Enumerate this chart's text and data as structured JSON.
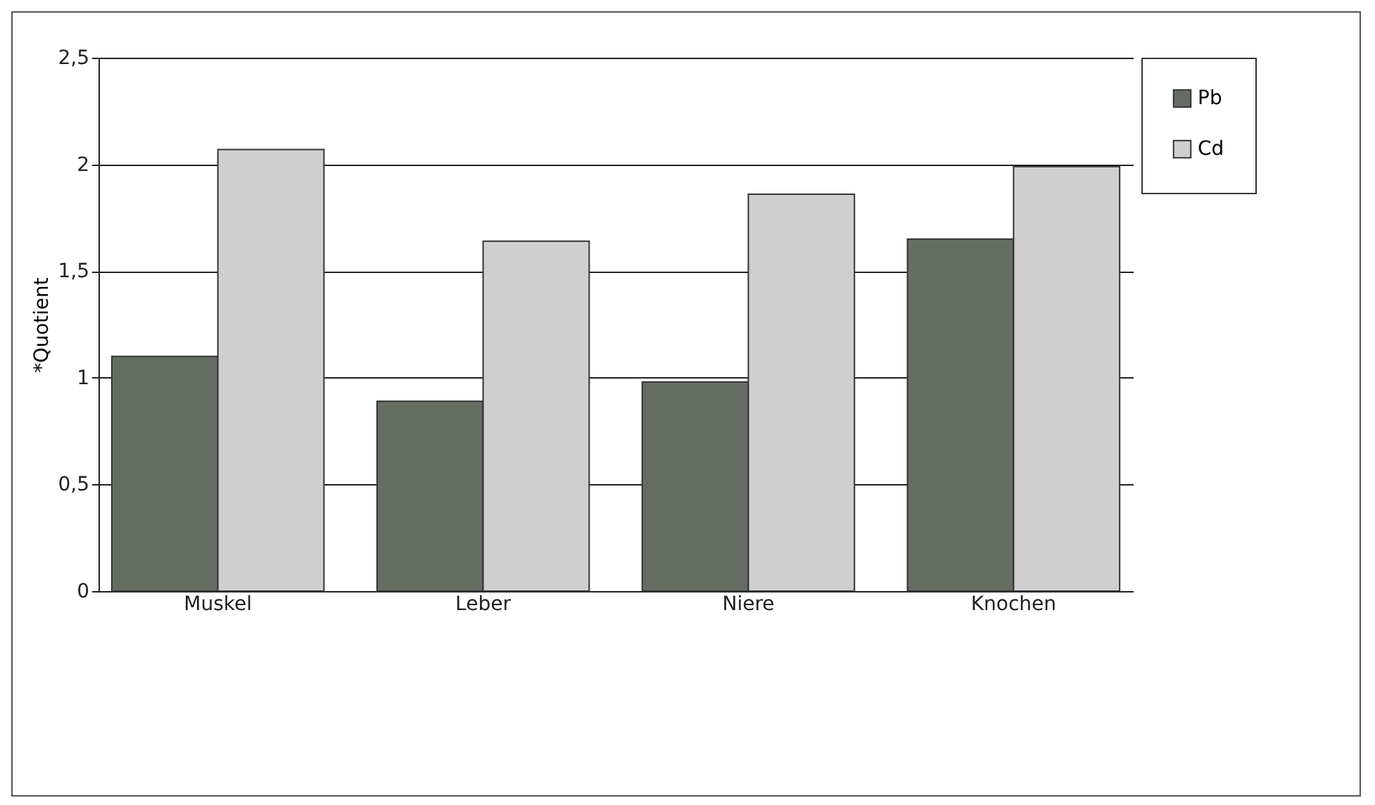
{
  "chart_data": {
    "type": "bar",
    "ylabel": "*Quotient",
    "categories": [
      "Muskel",
      "Leber",
      "Niere",
      "Knochen"
    ],
    "series": [
      {
        "name": "Pb",
        "color": "#656d63",
        "values": [
          1.1,
          0.89,
          0.98,
          1.65
        ]
      },
      {
        "name": "Cd",
        "color": "#cfcfcf",
        "values": [
          2.07,
          1.64,
          1.86,
          1.99
        ]
      }
    ],
    "ylim": [
      0,
      2.5
    ],
    "yticks": [
      0,
      {
        "value": 0.5,
        "label": "0,5"
      },
      1,
      {
        "value": 1.5,
        "label": "1,5"
      },
      2,
      {
        "value": 2.5,
        "label": "2,5"
      }
    ],
    "grid": "y",
    "legend": "right"
  }
}
